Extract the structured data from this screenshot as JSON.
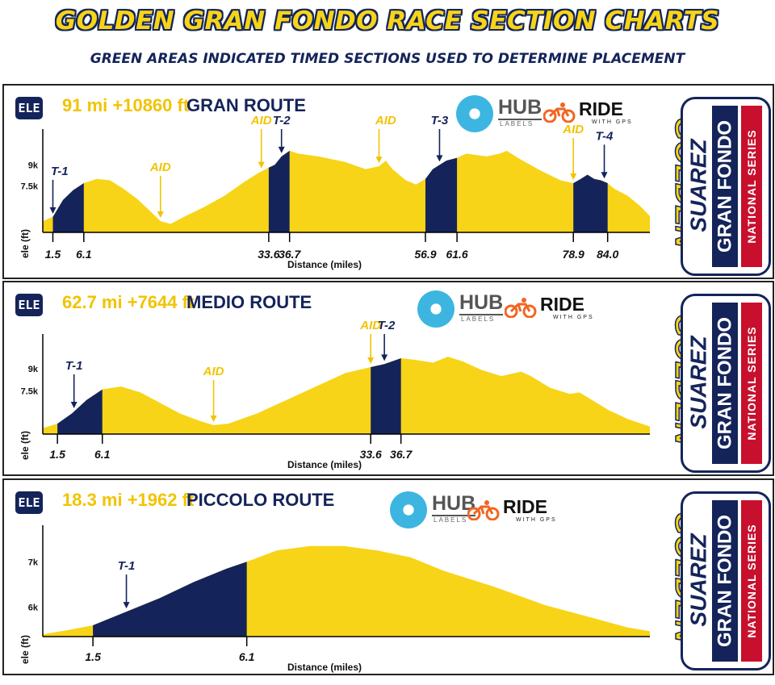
{
  "header": {
    "title": "GOLDEN GRAN FONDO RACE SECTION CHARTS",
    "subtitle": "GREEN AREAS INDICATED TIMED SECTIONS USED TO DETERMINE PLACEMENT"
  },
  "logos": {
    "hub_word": "HUB",
    "hub_sub": "LABELS",
    "ride_word": "RIDE",
    "ride_sub": "WITH GPS",
    "golden": "GOLDEN",
    "suarez": "SUAREZ",
    "gran_fondo": "GRAN FONDO",
    "national_series": "NATIONAL SERIES"
  },
  "colors": {
    "profile": "#f7d417",
    "timed": "#14245a",
    "accent": "#f2c300",
    "red": "#c8102e"
  },
  "chart_data": [
    {
      "type": "area",
      "ele_badge": "ELE",
      "stats": "91 mi +10860 ft",
      "route": "GRAN ROUTE",
      "xlabel": "Distance (miles)",
      "ylabel": "ele (ft)",
      "xlim": [
        0,
        91
      ],
      "ylim": [
        4200,
        11200
      ],
      "yticks": [
        {
          "label": "9k",
          "value": 9000
        },
        {
          "label": "7.5k",
          "value": 7500
        }
      ],
      "profile": [
        [
          0,
          5000
        ],
        [
          1.5,
          5300
        ],
        [
          3,
          6500
        ],
        [
          4.5,
          7200
        ],
        [
          6.1,
          7700
        ],
        [
          8,
          8000
        ],
        [
          10,
          7900
        ],
        [
          12,
          7300
        ],
        [
          14,
          6600
        ],
        [
          16,
          5700
        ],
        [
          17.5,
          5000
        ],
        [
          19,
          4800
        ],
        [
          21,
          5300
        ],
        [
          24,
          6000
        ],
        [
          27,
          6800
        ],
        [
          30,
          7800
        ],
        [
          32,
          8400
        ],
        [
          33.6,
          8800
        ],
        [
          34.5,
          9000
        ],
        [
          35.5,
          9600
        ],
        [
          36.7,
          10000
        ],
        [
          38,
          9800
        ],
        [
          41,
          9600
        ],
        [
          45,
          9200
        ],
        [
          48,
          8700
        ],
        [
          50,
          8900
        ],
        [
          51,
          9300
        ],
        [
          52,
          8700
        ],
        [
          54,
          7900
        ],
        [
          55.5,
          7600
        ],
        [
          56.9,
          8000
        ],
        [
          58,
          8700
        ],
        [
          60,
          9300
        ],
        [
          61.6,
          9500
        ],
        [
          63,
          9800
        ],
        [
          66,
          9600
        ],
        [
          68,
          9800
        ],
        [
          69,
          10000
        ],
        [
          71,
          9400
        ],
        [
          74,
          8600
        ],
        [
          77,
          7900
        ],
        [
          78.9,
          7700
        ],
        [
          80,
          8000
        ],
        [
          81,
          8300
        ],
        [
          82,
          8000
        ],
        [
          83,
          7900
        ],
        [
          84,
          7700
        ],
        [
          85,
          7300
        ],
        [
          87,
          6800
        ],
        [
          89,
          6000
        ],
        [
          91,
          5000
        ]
      ],
      "timed_sections": [
        [
          1.5,
          6.1
        ],
        [
          33.6,
          36.7
        ],
        [
          56.9,
          61.6
        ],
        [
          78.9,
          84.0
        ]
      ],
      "x_tick_labels": [
        "1.5",
        "6.1",
        "33.6",
        "36.7",
        "56.9",
        "61.6",
        "78.9",
        "84.0"
      ],
      "annotations": [
        {
          "label": "T-1",
          "kind": "T",
          "x": 1.5,
          "label_x": 2.5
        },
        {
          "label": "AID",
          "kind": "AID",
          "x": 17.5,
          "label_x": 17.5
        },
        {
          "label": "AID",
          "kind": "AID",
          "x": 32.5,
          "label_x": 32.5
        },
        {
          "label": "T-2",
          "kind": "T",
          "x": 35.5,
          "label_x": 35.5
        },
        {
          "label": "AID",
          "kind": "AID",
          "x": 50,
          "label_x": 51
        },
        {
          "label": "T-3",
          "kind": "T",
          "x": 59,
          "label_x": 59
        },
        {
          "label": "AID",
          "kind": "AID",
          "x": 78.9,
          "label_x": 78.9
        },
        {
          "label": "T-4",
          "kind": "T",
          "x": 83.5,
          "label_x": 83.5
        }
      ]
    },
    {
      "type": "area",
      "ele_badge": "ELE",
      "stats": "62.7 mi +7644 ft",
      "route": "MEDIO ROUTE",
      "xlabel": "Distance (miles)",
      "ylabel": "ele (ft)",
      "xlim": [
        0,
        62.7
      ],
      "ylim": [
        4600,
        11000
      ],
      "yticks": [
        {
          "label": "9k",
          "value": 9000
        },
        {
          "label": "7.5k",
          "value": 7500
        }
      ],
      "profile": [
        [
          0,
          5000
        ],
        [
          1.5,
          5300
        ],
        [
          3,
          6000
        ],
        [
          4.5,
          6900
        ],
        [
          6.1,
          7600
        ],
        [
          8,
          7800
        ],
        [
          10,
          7400
        ],
        [
          12,
          6700
        ],
        [
          14,
          6000
        ],
        [
          16,
          5500
        ],
        [
          17.5,
          5200
        ],
        [
          19,
          5300
        ],
        [
          22,
          6000
        ],
        [
          25,
          6900
        ],
        [
          28,
          7800
        ],
        [
          31,
          8700
        ],
        [
          33.6,
          9100
        ],
        [
          35,
          9300
        ],
        [
          36.7,
          9700
        ],
        [
          38,
          9600
        ],
        [
          40,
          9400
        ],
        [
          41.5,
          9800
        ],
        [
          43,
          9500
        ],
        [
          45,
          8900
        ],
        [
          47,
          8500
        ],
        [
          49,
          8800
        ],
        [
          50,
          8500
        ],
        [
          52,
          7700
        ],
        [
          54,
          7300
        ],
        [
          55,
          7400
        ],
        [
          56,
          7000
        ],
        [
          58,
          6200
        ],
        [
          60,
          5600
        ],
        [
          62.7,
          5000
        ]
      ],
      "timed_sections": [
        [
          1.5,
          6.1
        ],
        [
          33.6,
          36.7
        ]
      ],
      "x_tick_labels": [
        "1.5",
        "6.1",
        "33.6",
        "36.7"
      ],
      "annotations": [
        {
          "label": "T-1",
          "kind": "T",
          "x": 3.2,
          "label_x": 3.2
        },
        {
          "label": "AID",
          "kind": "AID",
          "x": 17.5,
          "label_x": 17.5
        },
        {
          "label": "AID",
          "kind": "AID",
          "x": 33.6,
          "label_x": 33.6
        },
        {
          "label": "T-2",
          "kind": "T",
          "x": 35,
          "label_x": 35.2
        }
      ]
    },
    {
      "type": "area",
      "ele_badge": "ELE",
      "stats": "18.3 mi +1962 ft",
      "route": "PICCOLO ROUTE",
      "xlabel": "Distance (miles)",
      "ylabel": "ele (ft)",
      "xlim": [
        0,
        18.3
      ],
      "ylim": [
        5350,
        7700
      ],
      "yticks": [
        {
          "label": "7k",
          "value": 7000
        },
        {
          "label": "6k",
          "value": 6000
        }
      ],
      "profile": [
        [
          0,
          5400
        ],
        [
          0.8,
          5500
        ],
        [
          1.5,
          5600
        ],
        [
          2.5,
          5900
        ],
        [
          3.5,
          6200
        ],
        [
          4.5,
          6550
        ],
        [
          5.5,
          6850
        ],
        [
          6.1,
          7000
        ],
        [
          7,
          7250
        ],
        [
          8,
          7350
        ],
        [
          9,
          7350
        ],
        [
          10,
          7250
        ],
        [
          11,
          7100
        ],
        [
          12,
          6800
        ],
        [
          13.5,
          6450
        ],
        [
          15,
          6050
        ],
        [
          16.5,
          5750
        ],
        [
          17.5,
          5550
        ],
        [
          18.3,
          5450
        ]
      ],
      "timed_sections": [
        [
          1.5,
          6.1
        ]
      ],
      "x_tick_labels": [
        "1.5",
        "6.1"
      ],
      "annotations": [
        {
          "label": "T-1",
          "kind": "T",
          "x": 2.5,
          "label_x": 2.5
        }
      ]
    }
  ]
}
